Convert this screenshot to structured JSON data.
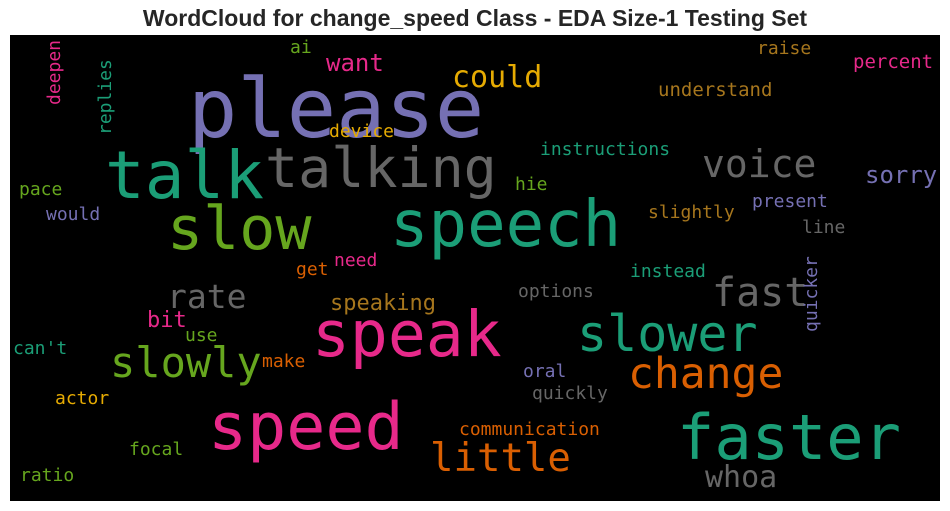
{
  "chart_data": {
    "type": "wordcloud",
    "title": "WordCloud for change_speed Class - EDA Size-1 Testing Set",
    "words": [
      {
        "text": "please",
        "color": "#7570b3"
      },
      {
        "text": "talk",
        "color": "#1b9e77"
      },
      {
        "text": "talking",
        "color": "#666666"
      },
      {
        "text": "slow",
        "color": "#66a61e"
      },
      {
        "text": "speech",
        "color": "#1b9e77"
      },
      {
        "text": "voice",
        "color": "#666666"
      },
      {
        "text": "speak",
        "color": "#e7298a"
      },
      {
        "text": "slower",
        "color": "#1b9e77"
      },
      {
        "text": "speed",
        "color": "#e7298a"
      },
      {
        "text": "faster",
        "color": "#1b9e77"
      },
      {
        "text": "fast",
        "color": "#666666"
      },
      {
        "text": "change",
        "color": "#d95f02"
      },
      {
        "text": "slowly",
        "color": "#66a61e"
      },
      {
        "text": "rate",
        "color": "#666666"
      },
      {
        "text": "little",
        "color": "#d95f02"
      },
      {
        "text": "could",
        "color": "#e6ab02"
      },
      {
        "text": "whoa",
        "color": "#666666"
      },
      {
        "text": "want",
        "color": "#e7298a"
      },
      {
        "text": "sorry",
        "color": "#7570b3"
      },
      {
        "text": "understand",
        "color": "#a6761d"
      },
      {
        "text": "raise",
        "color": "#a6761d"
      },
      {
        "text": "percent",
        "color": "#e7298a"
      },
      {
        "text": "instructions",
        "color": "#1b9e77"
      },
      {
        "text": "device",
        "color": "#e6ab02"
      },
      {
        "text": "ai",
        "color": "#66a61e"
      },
      {
        "text": "deepen",
        "color": "#e7298a"
      },
      {
        "text": "replies",
        "color": "#1b9e77"
      },
      {
        "text": "pace",
        "color": "#66a61e"
      },
      {
        "text": "would",
        "color": "#7570b3"
      },
      {
        "text": "hie",
        "color": "#66a61e"
      },
      {
        "text": "slightly",
        "color": "#a6761d"
      },
      {
        "text": "present",
        "color": "#7570b3"
      },
      {
        "text": "line",
        "color": "#666666"
      },
      {
        "text": "instead",
        "color": "#1b9e77"
      },
      {
        "text": "need",
        "color": "#e7298a"
      },
      {
        "text": "get",
        "color": "#d95f02"
      },
      {
        "text": "options",
        "color": "#666666"
      },
      {
        "text": "quicker",
        "color": "#7570b3"
      },
      {
        "text": "speaking",
        "color": "#a6761d"
      },
      {
        "text": "bit",
        "color": "#e7298a"
      },
      {
        "text": "use",
        "color": "#66a61e"
      },
      {
        "text": "can't",
        "color": "#1b9e77"
      },
      {
        "text": "make",
        "color": "#d95f02"
      },
      {
        "text": "oral",
        "color": "#7570b3"
      },
      {
        "text": "quickly",
        "color": "#666666"
      },
      {
        "text": "actor",
        "color": "#e6ab02"
      },
      {
        "text": "communication",
        "color": "#d95f02"
      },
      {
        "text": "focal",
        "color": "#66a61e"
      },
      {
        "text": "ratio",
        "color": "#66a61e"
      }
    ]
  }
}
